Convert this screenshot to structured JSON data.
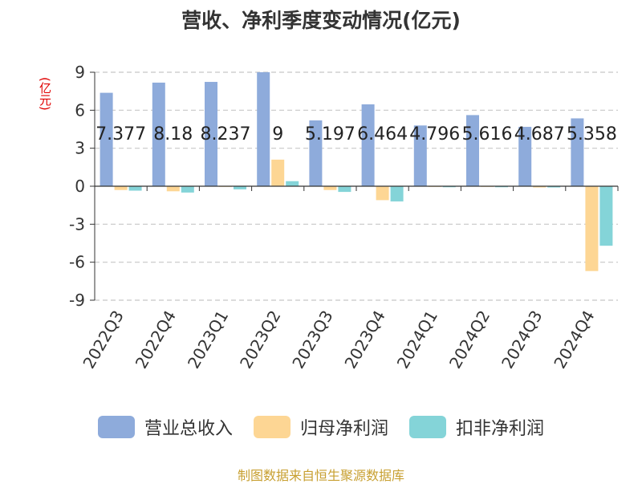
{
  "chart_data": {
    "type": "bar",
    "title": "营收、净利季度变动情况(亿元)",
    "ylabel": "(亿元)",
    "categories": [
      "2022Q3",
      "2022Q4",
      "2023Q1",
      "2023Q2",
      "2023Q3",
      "2023Q4",
      "2024Q1",
      "2024Q2",
      "2024Q3",
      "2024Q4"
    ],
    "series": [
      {
        "name": "营业总收入",
        "color": "#8eabdb",
        "values": [
          7.377,
          8.18,
          8.237,
          9,
          5.197,
          6.464,
          4.796,
          5.616,
          4.687,
          5.358
        ],
        "labels": [
          "7.377",
          "8.18",
          "8.237",
          "9",
          "5.197",
          "6.464",
          "4.796",
          "5.616",
          "4.687",
          "5.358"
        ]
      },
      {
        "name": "归母净利润",
        "color": "#fdd694",
        "values": [
          -0.3,
          -0.4,
          -0.05,
          2.1,
          -0.3,
          -1.1,
          -0.05,
          -0.05,
          -0.1,
          -6.7
        ]
      },
      {
        "name": "扣非净利润",
        "color": "#84d4d8",
        "values": [
          -0.35,
          -0.5,
          -0.25,
          0.4,
          -0.45,
          -1.2,
          -0.08,
          -0.08,
          -0.1,
          -4.7
        ]
      }
    ],
    "ylim": [
      -9,
      9
    ],
    "yticks": [
      9,
      6,
      3,
      0,
      -3,
      -6,
      -9
    ],
    "ytick_labels": [
      "9",
      "6",
      "3",
      "0",
      "-3",
      "-6",
      "-9"
    ],
    "grid": true,
    "legend_position": "bottom"
  },
  "footer": {
    "source": "制图数据来自恒生聚源数据库"
  }
}
